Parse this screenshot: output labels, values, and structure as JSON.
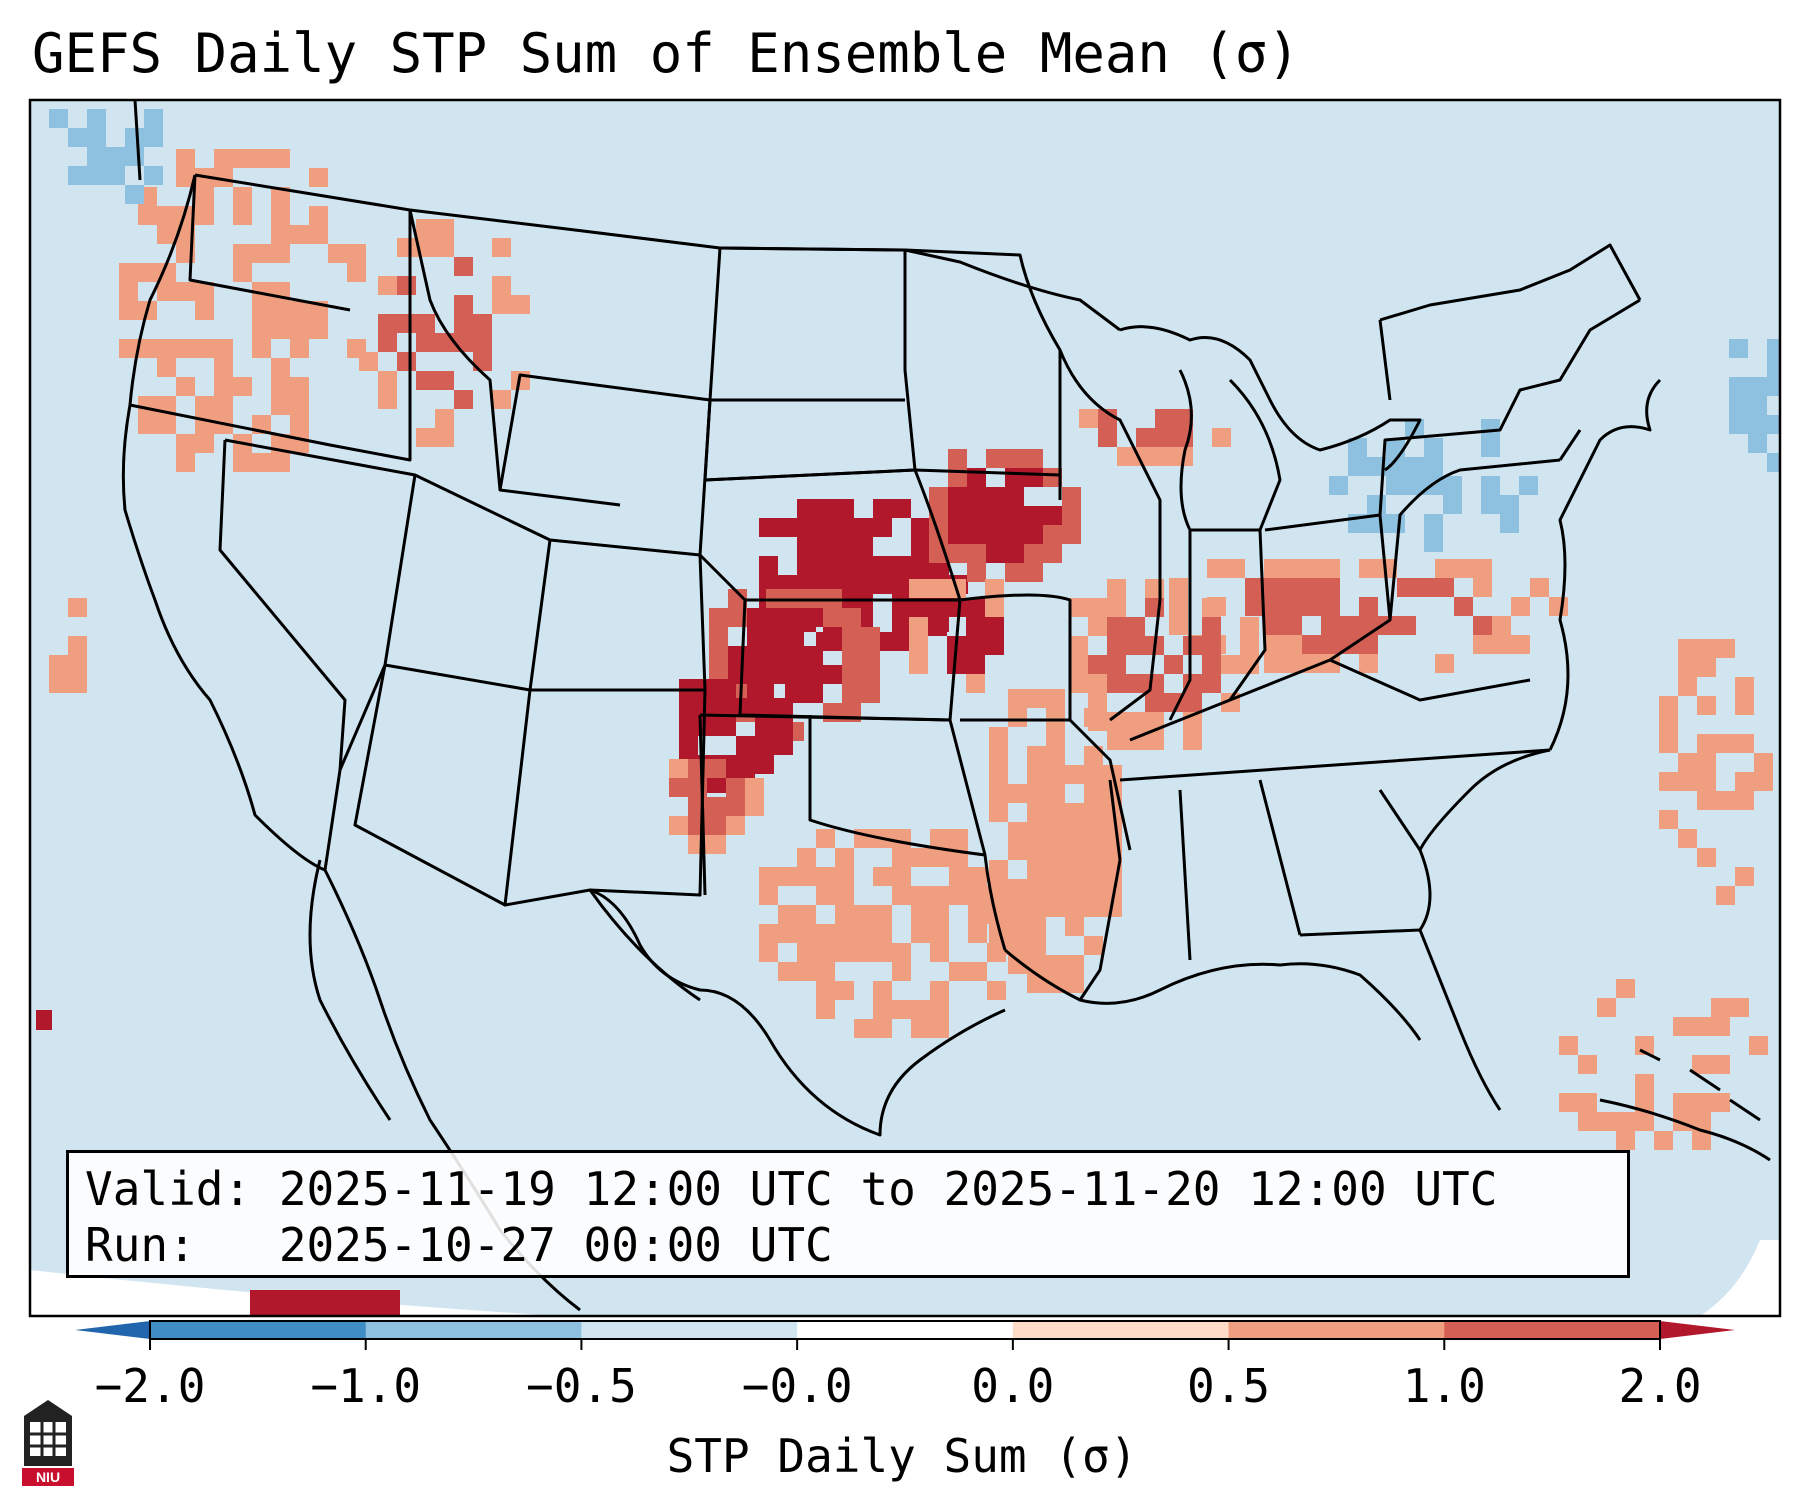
{
  "title": "GEFS Daily STP Sum of Ensemble Mean (σ)",
  "info": {
    "valid_line": "Valid: 2025-11-19 12:00 UTC to 2025-11-20 12:00 UTC",
    "run_line": "Run:   2025-10-27 00:00 UTC"
  },
  "colorbar": {
    "label": "STP Daily Sum (σ)",
    "ticks": [
      "−2.0",
      "−1.0",
      "−0.5",
      "−0.0",
      "0.0",
      "0.5",
      "1.0",
      "2.0"
    ],
    "colors": [
      "#3f8ec3",
      "#8ec1df",
      "#d1e5f0",
      "#ffffff",
      "#fddbc7",
      "#f09e80",
      "#d45f55"
    ],
    "extend_min_color": "#2166ac",
    "extend_max_color": "#b2182b",
    "background_color": "#d1e5f0"
  },
  "logo": {
    "text": "NIU",
    "icon": "university-seal-icon"
  },
  "chart_data": {
    "type": "heatmap",
    "title": "GEFS Daily STP Sum of Ensemble Mean (σ)",
    "variable": "STP Daily Sum (σ)",
    "levels": [
      -2.0,
      -1.0,
      -0.5,
      -0.0,
      0.0,
      0.5,
      1.0,
      2.0
    ],
    "regions": [
      {
        "name": "Central Plains maximum (NE/KS/OK/IA/MN)",
        "value_range": [
          1.0,
          2.0
        ]
      },
      {
        "name": "Texas panhandle / NM border",
        "value_range": [
          1.0,
          2.0
        ]
      },
      {
        "name": "Ohio Valley / Kentucky / WV",
        "value_range": [
          0.5,
          2.0
        ]
      },
      {
        "name": "Wisconsin / Michigan",
        "value_range": [
          0.5,
          1.0
        ]
      },
      {
        "name": "Missouri / Arkansas / Louisiana",
        "value_range": [
          0.0,
          1.0
        ]
      },
      {
        "name": "Central & East Texas",
        "value_range": [
          0.0,
          1.0
        ]
      },
      {
        "name": "Pacific Northwest / Idaho",
        "value_range": [
          0.0,
          1.0
        ]
      },
      {
        "name": "Great Lakes / Northeast",
        "value_range": [
          -1.0,
          -0.5
        ]
      },
      {
        "name": "Southern Mexico",
        "value_range": [
          1.0,
          2.0
        ]
      },
      {
        "name": "Remaining domain",
        "value_range": [
          -0.5,
          -0.0
        ]
      }
    ]
  }
}
